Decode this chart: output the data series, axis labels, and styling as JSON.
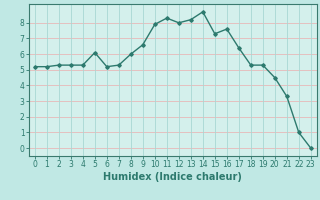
{
  "x": [
    0,
    1,
    2,
    3,
    4,
    5,
    6,
    7,
    8,
    9,
    10,
    11,
    12,
    13,
    14,
    15,
    16,
    17,
    18,
    19,
    20,
    21,
    22,
    23
  ],
  "y": [
    5.2,
    5.2,
    5.3,
    5.3,
    5.3,
    6.1,
    5.2,
    5.3,
    6.0,
    6.6,
    7.9,
    8.3,
    8.0,
    8.2,
    8.7,
    7.3,
    7.6,
    6.4,
    5.3,
    5.3,
    4.5,
    3.3,
    1.0,
    0.0
  ],
  "line_color": "#2d7a6e",
  "marker": "D",
  "marker_size": 1.8,
  "line_width": 1.0,
  "xlabel": "Humidex (Indice chaleur)",
  "xlabel_fontsize": 7,
  "xlim": [
    -0.5,
    23.5
  ],
  "ylim": [
    -0.5,
    9.2
  ],
  "yticks": [
    0,
    1,
    2,
    3,
    4,
    5,
    6,
    7,
    8
  ],
  "xticks": [
    0,
    1,
    2,
    3,
    4,
    5,
    6,
    7,
    8,
    9,
    10,
    11,
    12,
    13,
    14,
    15,
    16,
    17,
    18,
    19,
    20,
    21,
    22,
    23
  ],
  "bg_color": "#d4f0ec",
  "grid_color_h": "#e8b8b8",
  "grid_color_v": "#a8d8d4",
  "tick_fontsize": 5.5,
  "spine_color": "#3a7a6e",
  "fig_bg": "#c0e8e4"
}
